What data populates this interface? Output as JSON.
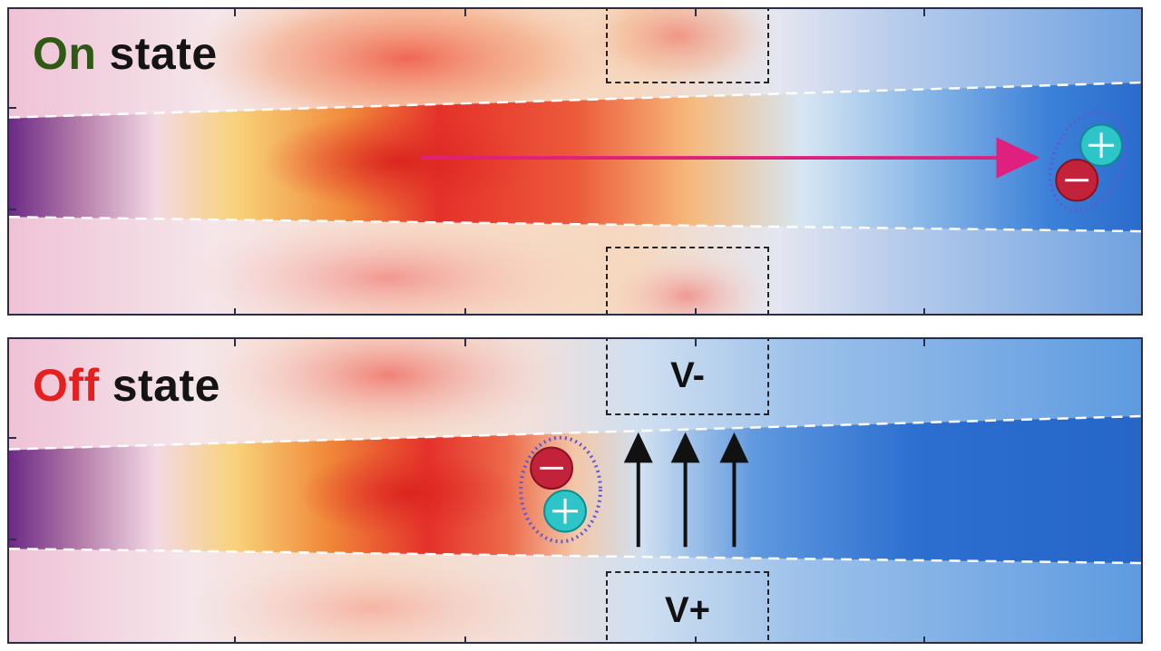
{
  "panels": {
    "on": {
      "key_word": "On",
      "rest_word": "state",
      "key_color": "#2f5a14"
    },
    "off": {
      "key_word": "Off",
      "rest_word": "state",
      "key_color": "#e5201e",
      "top_electrode": "V-",
      "bottom_electrode": "V+"
    }
  },
  "colors": {
    "text_dark": "#141414",
    "exciton_arrow": "#e0207e",
    "field_arrow": "#111111",
    "electron": "#c2223a",
    "hole": "#2ec5c8",
    "pair_outline": "#5b5bd6"
  },
  "icons": [
    "electron-minus-icon",
    "hole-plus-icon",
    "exciton-pair-icon"
  ]
}
